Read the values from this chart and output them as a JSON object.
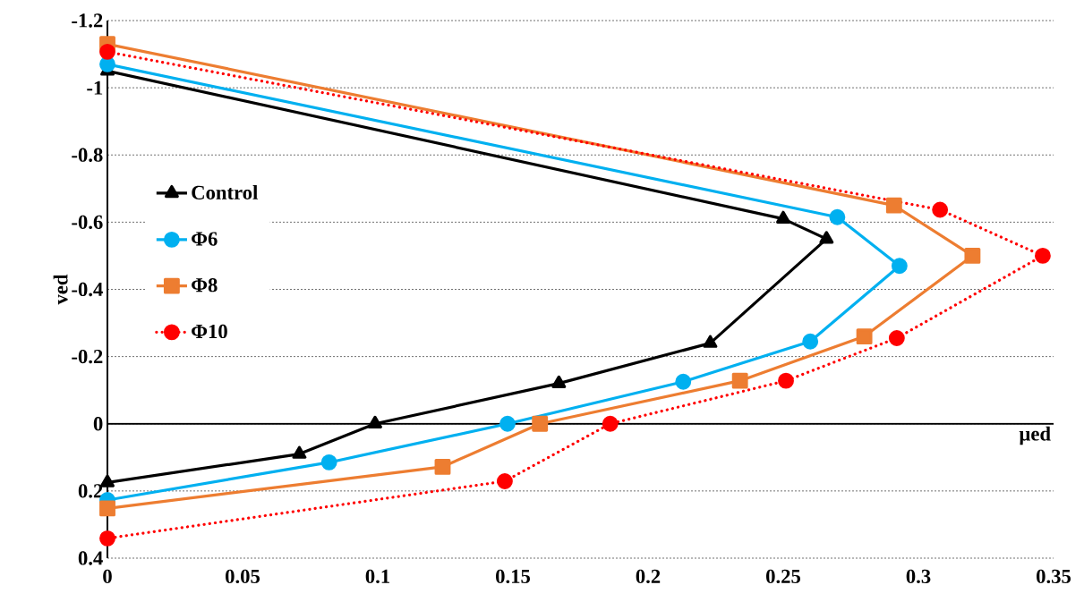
{
  "chart_data": {
    "type": "line",
    "xlabel": "µed",
    "ylabel": "ved",
    "xlim": [
      0,
      0.35
    ],
    "xticks": [
      0,
      0.05,
      0.1,
      0.15,
      0.2,
      0.25,
      0.3,
      0.35
    ],
    "ylim": [
      0.4,
      -1.2
    ],
    "yticks": [
      -1.2,
      -1,
      -0.8,
      -0.6,
      -0.4,
      -0.2,
      0,
      0.2,
      0.4
    ],
    "grid": "y",
    "legend": "left",
    "series": [
      {
        "name": "Control",
        "color": "#000000",
        "marker": "triangle",
        "line_style": "solid",
        "x": [
          0,
          0.25,
          0.266,
          0.223,
          0.167,
          0.099,
          0.071,
          0
        ],
        "values": [
          -1.05,
          -0.61,
          -0.55,
          -0.24,
          -0.12,
          0,
          0.09,
          0.175
        ]
      },
      {
        "name": "Φ6",
        "color": "#00b0f0",
        "marker": "circle",
        "line_style": "solid",
        "x": [
          0,
          0.27,
          0.293,
          0.26,
          0.213,
          0.148,
          0.082,
          0
        ],
        "values": [
          -1.07,
          -0.615,
          -0.47,
          -0.245,
          -0.125,
          0,
          0.115,
          0.227
        ]
      },
      {
        "name": "Φ8",
        "color": "#ed7d31",
        "marker": "square",
        "line_style": "solid",
        "x": [
          0,
          0.291,
          0.32,
          0.28,
          0.234,
          0.16,
          0.124,
          0
        ],
        "values": [
          -1.13,
          -0.65,
          -0.5,
          -0.26,
          -0.128,
          0,
          0.128,
          0.252
        ]
      },
      {
        "name": "Φ10",
        "color": "#ff0000",
        "marker": "circle",
        "line_style": "dotted",
        "x": [
          0,
          0.308,
          0.346,
          0.292,
          0.251,
          0.186,
          0.147,
          0
        ],
        "values": [
          -1.107,
          -0.637,
          -0.5,
          -0.255,
          -0.128,
          0,
          0.171,
          0.341
        ]
      }
    ]
  }
}
